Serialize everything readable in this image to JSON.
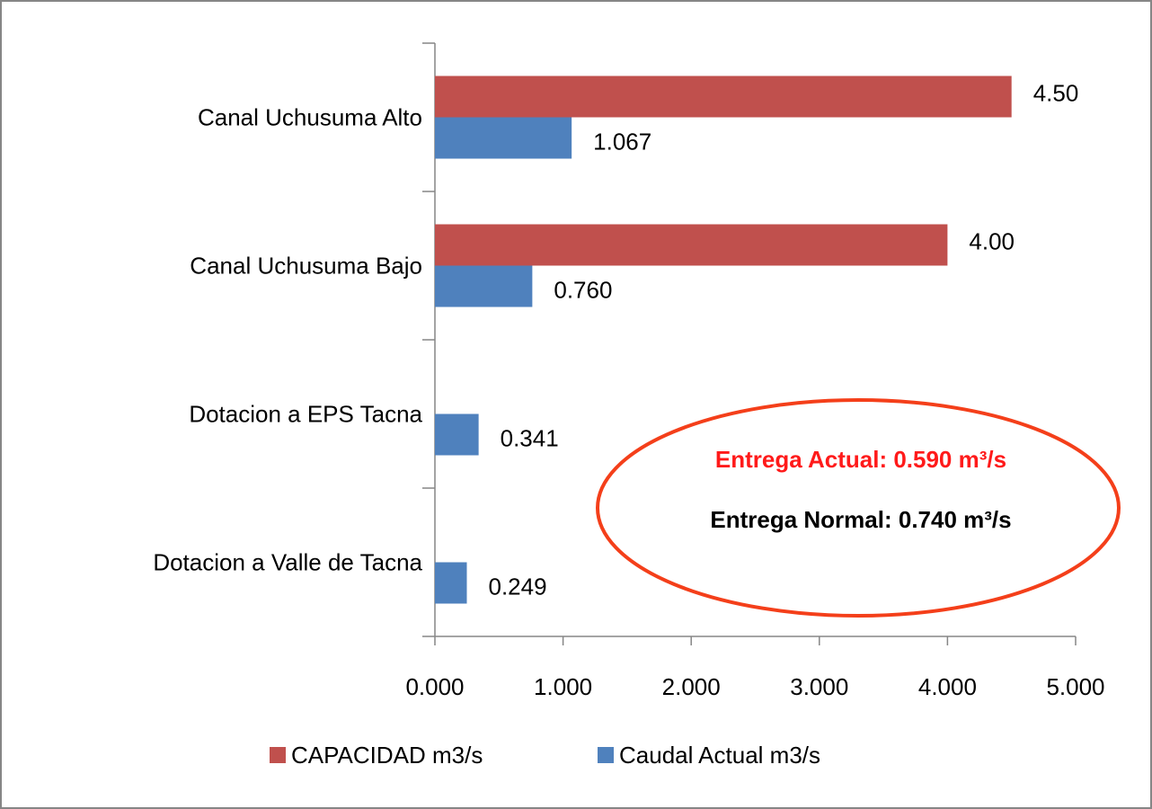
{
  "chart_data": {
    "type": "bar",
    "orientation": "horizontal",
    "categories": [
      "Canal Uchusuma Alto",
      "Canal Uchusuma Bajo",
      "Dotacion a EPS Tacna",
      "Dotacion a Valle de Tacna"
    ],
    "series": [
      {
        "name": "CAPACIDAD m3/s",
        "color": "#c0504d",
        "values": [
          4.5,
          4.0,
          null,
          null
        ],
        "value_labels": [
          "4.50",
          "4.00",
          null,
          null
        ]
      },
      {
        "name": "Caudal Actual m3/s",
        "color": "#4f81bd",
        "values": [
          1.067,
          0.76,
          0.341,
          0.249
        ],
        "value_labels": [
          "1.067",
          "0.760",
          "0.341",
          "0.249"
        ]
      }
    ],
    "xlim": [
      0,
      5
    ],
    "xticks": [
      {
        "value": 0,
        "label": "0.000"
      },
      {
        "value": 1,
        "label": "1.000"
      },
      {
        "value": 2,
        "label": "2.000"
      },
      {
        "value": 3,
        "label": "3.000"
      },
      {
        "value": 4,
        "label": "4.000"
      },
      {
        "value": 5,
        "label": "5.000"
      }
    ],
    "legend": "bottom",
    "annotations": [
      {
        "text": "Entrega Actual: 0.590 m³/s",
        "color": "#ff1a1a"
      },
      {
        "text": "Entrega Normal: 0.740 m³/s",
        "color": "#000000"
      }
    ]
  }
}
